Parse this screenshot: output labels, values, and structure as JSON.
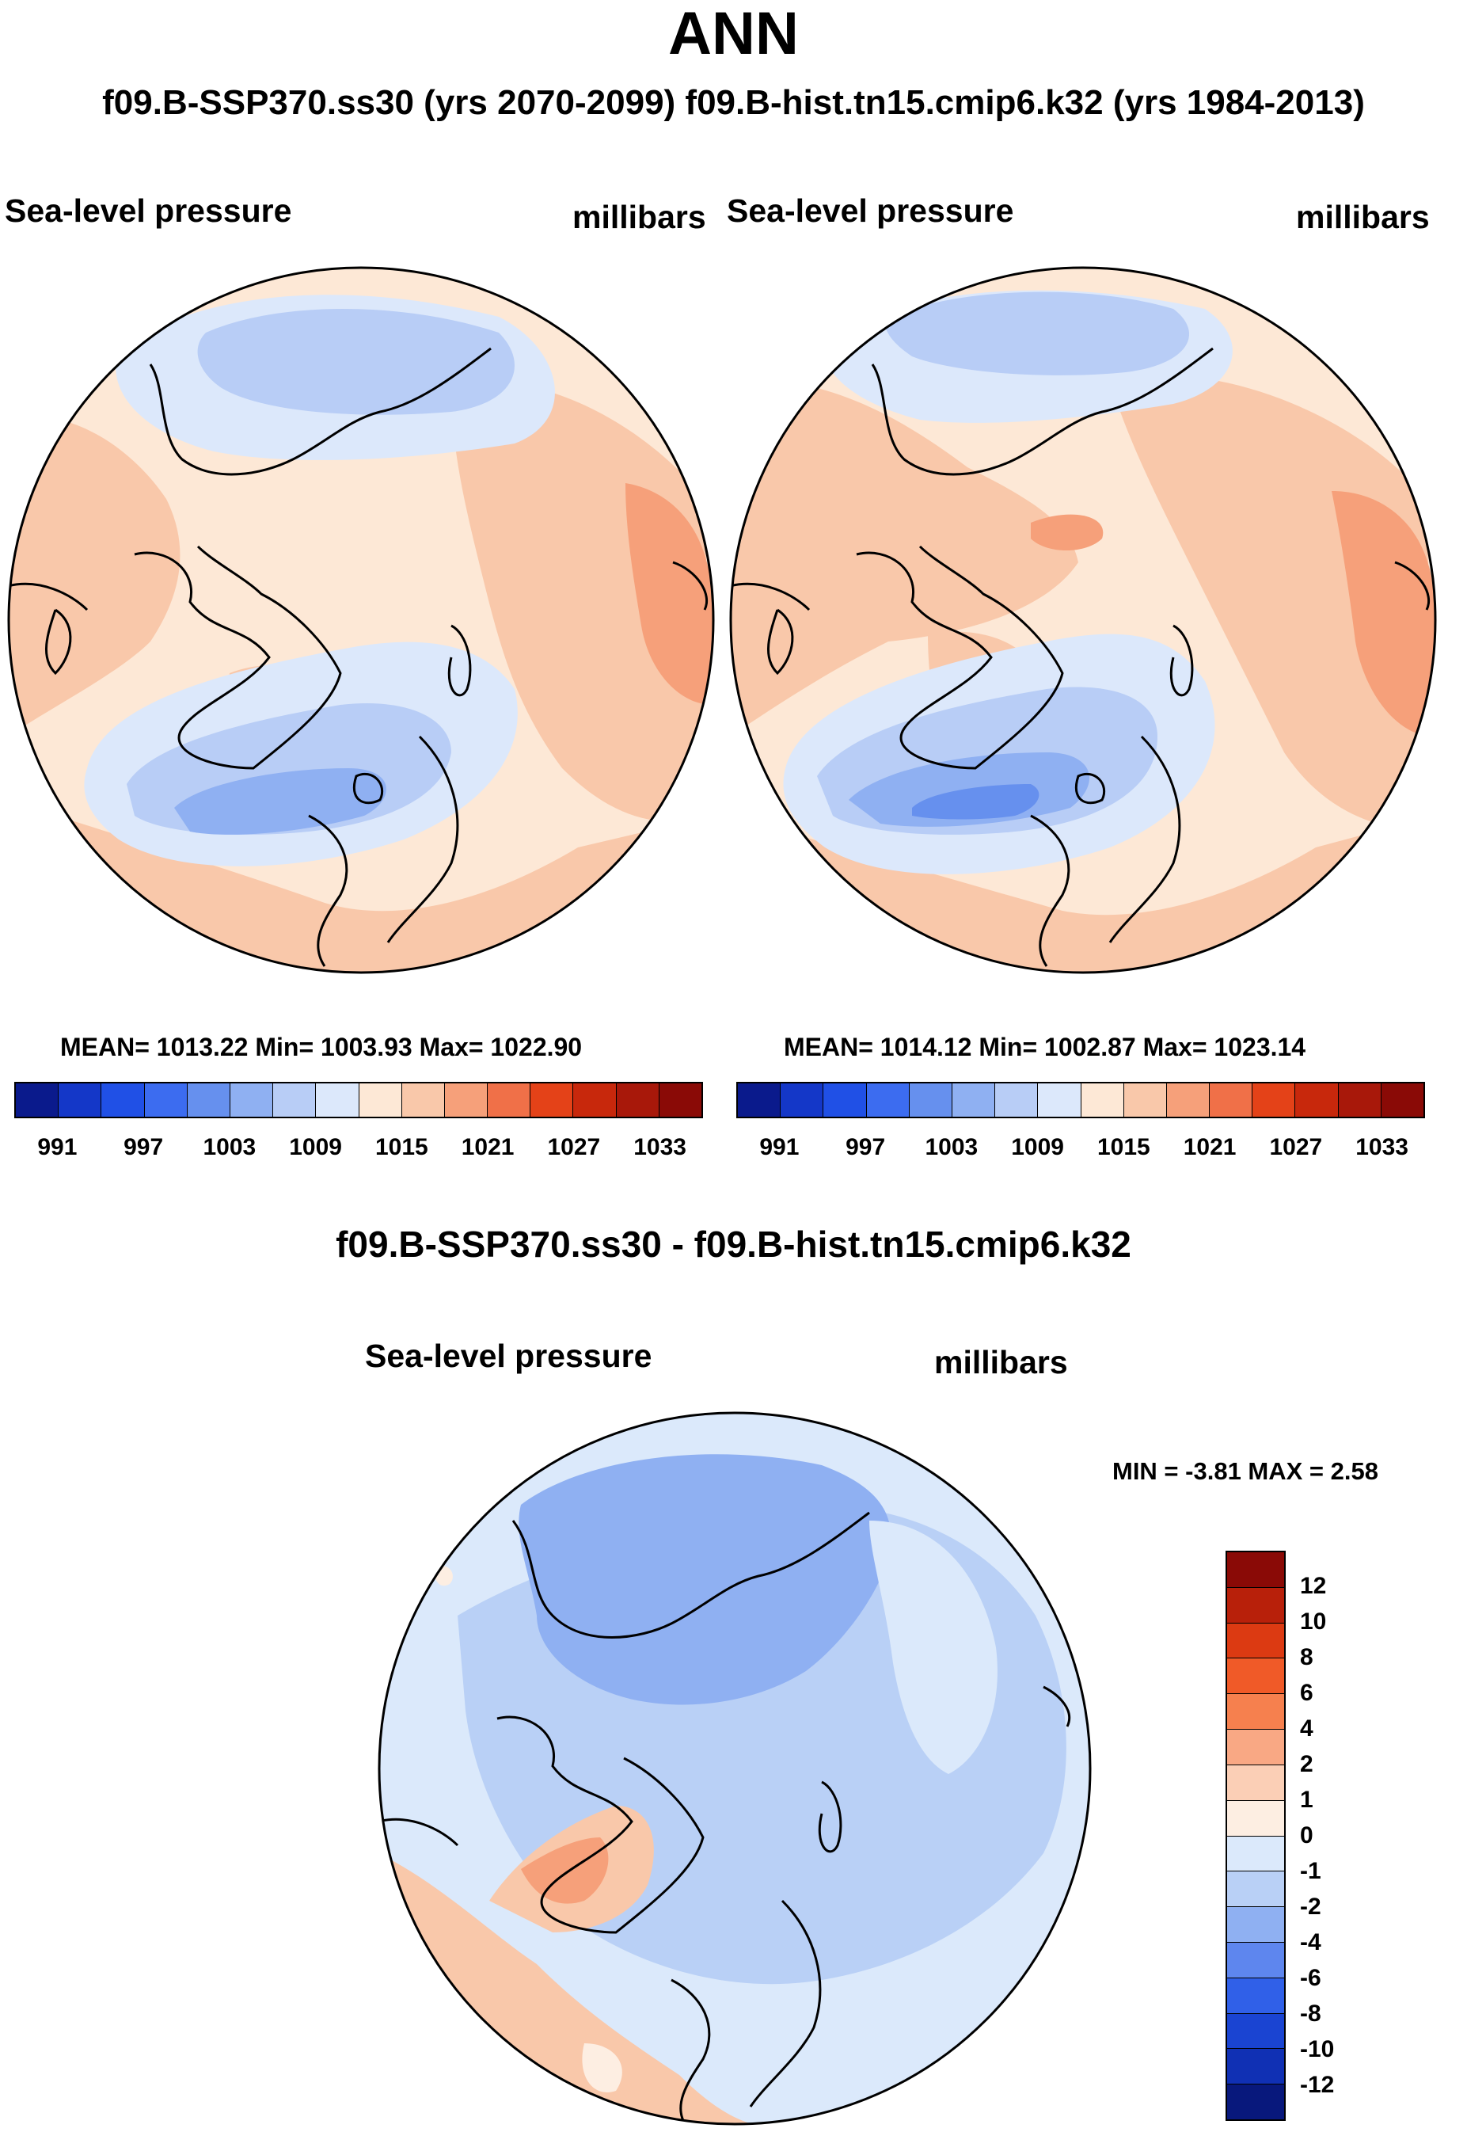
{
  "title": "ANN",
  "subtitle": "f09.B-SSP370.ss30 (yrs 2070-2099)  f09.B-hist.tn15.cmip6.k32 (yrs 1984-2013)",
  "panels": [
    {
      "variable": "Sea-level pressure",
      "units": "millibars",
      "stats": "MEAN= 1013.22  Min= 1003.93  Max= 1022.90"
    },
    {
      "variable": "Sea-level pressure",
      "units": "millibars",
      "stats": "MEAN= 1014.12  Min= 1002.87  Max= 1023.14"
    }
  ],
  "abs_colorbar": {
    "labels": [
      "991",
      "997",
      "1003",
      "1009",
      "1015",
      "1021",
      "1027",
      "1033"
    ],
    "colors": [
      "#0a1a8c",
      "#1437c8",
      "#2050e6",
      "#3c6cf0",
      "#6690ee",
      "#8fb0f2",
      "#b8cdf6",
      "#dce8fb",
      "#fde8d6",
      "#f9c8aa",
      "#f6a07a",
      "#f07048",
      "#e44218",
      "#c8280c",
      "#a8180a",
      "#8a0a06"
    ]
  },
  "diff": {
    "title": "f09.B-SSP370.ss30 - f09.B-hist.tn15.cmip6.k32",
    "variable": "Sea-level pressure",
    "units": "millibars",
    "minmax": "MIN =  -3.81 MAX =   2.58"
  },
  "diff_colorbar": {
    "labels": [
      "12",
      "10",
      "8",
      "6",
      "4",
      "2",
      "1",
      "0",
      "-1",
      "-2",
      "-4",
      "-6",
      "-8",
      "-10",
      "-12"
    ],
    "colors": [
      "#8a0a06",
      "#b8200a",
      "#dc3a12",
      "#f05a28",
      "#f6804e",
      "#f9a884",
      "#fbcfb6",
      "#fdeee2",
      "#dbe9fb",
      "#b9d0f6",
      "#8fb0f2",
      "#5e86ee",
      "#3060e8",
      "#1a44d2",
      "#1030b4",
      "#08187c"
    ]
  },
  "map_colors": {
    "ocean_base": "#fde8d6",
    "pos1": "#f9c8aa",
    "pos2": "#f6a07a",
    "pos3": "#f07048",
    "neg1": "#dce8fb",
    "neg2": "#b8cdf6",
    "neg3": "#8fb0f2",
    "neg4": "#6690ee",
    "diff_base": "#dbe9fb",
    "diff_neg2": "#b9d0f6",
    "diff_neg3": "#8fb0f2",
    "diff_pos1": "#fdeee2",
    "diff_pos2": "#f9c8aa",
    "diff_pos3": "#f6a07a"
  }
}
